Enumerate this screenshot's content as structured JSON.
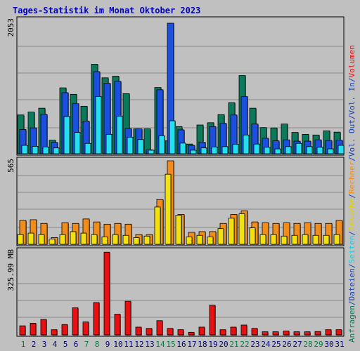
{
  "chart_data": {
    "type": "bar",
    "title": "Tages-Statistik im Monat Oktober 2023",
    "categories": [
      "1",
      "2",
      "3",
      "4",
      "5",
      "6",
      "7",
      "8",
      "9",
      "10",
      "11",
      "12",
      "13",
      "14",
      "15",
      "16",
      "17",
      "18",
      "19",
      "20",
      "21",
      "22",
      "23",
      "24",
      "25",
      "26",
      "27",
      "28",
      "29",
      "30",
      "31"
    ],
    "weekend_days": [
      "1",
      "7",
      "8",
      "14",
      "15",
      "21",
      "22",
      "28",
      "29"
    ],
    "panels": [
      {
        "id": "requests",
        "max_label": "2053",
        "ylim": [
          0,
          2053
        ],
        "series": [
          {
            "name": "Anfragen",
            "color": "#0b7a5a",
            "values": [
              600,
              645,
              705,
              210,
              1020,
              920,
              735,
              1385,
              1175,
              1200,
              930,
              385,
              385,
              1025,
              200,
              420,
              150,
              445,
              480,
              605,
              790,
              1210,
              705,
              405,
              400,
              460,
              330,
              300,
              290,
              355,
              335
            ]
          },
          {
            "name": "Dateien",
            "color": "#1a4fe0",
            "values": [
              375,
              400,
              610,
              175,
              945,
              775,
              505,
              1270,
              1090,
              1120,
              390,
              385,
              60,
              990,
              2020,
              370,
              130,
              180,
              420,
              470,
              600,
              885,
              460,
              240,
              200,
              215,
              195,
              195,
              215,
              205,
              210
            ]
          },
          {
            "name": "Seiten",
            "color": "#22e0f0",
            "values": [
              130,
              115,
              105,
              90,
              575,
              330,
              160,
              885,
              300,
              580,
              255,
              220,
              55,
              280,
              510,
              165,
              55,
              90,
              105,
              110,
              145,
              290,
              150,
              100,
              75,
              110,
              160,
              110,
              100,
              75,
              130
            ]
          }
        ]
      },
      {
        "id": "visits",
        "max_label": "565",
        "ylim": [
          0,
          565
        ],
        "series": [
          {
            "name": "Rechner",
            "color": "#f28c1a",
            "values": [
              160,
              165,
              140,
              45,
              145,
              140,
              170,
              150,
              135,
              140,
              135,
              65,
              65,
              300,
              560,
              200,
              80,
              85,
              85,
              140,
              200,
              225,
              150,
              145,
              140,
              145,
              140,
              145,
              140,
              140,
              160
            ]
          },
          {
            "name": "Besuche",
            "color": "#f2e010",
            "values": [
              65,
              75,
              65,
              35,
              65,
              85,
              75,
              65,
              50,
              65,
              60,
              45,
              55,
              250,
              470,
              195,
              50,
              60,
              50,
              105,
              175,
              205,
              110,
              65,
              65,
              55,
              60,
              65,
              60,
              60,
              65
            ]
          }
        ]
      },
      {
        "id": "volume",
        "max_label": "325.99 MB",
        "ylim": [
          0,
          325.99
        ],
        "series": [
          {
            "name": "Volumen",
            "color": "#e81010",
            "values": [
              35,
              45,
              60,
              20,
              40,
              105,
              50,
              125,
              320,
              80,
              130,
              30,
              25,
              55,
              25,
              20,
              10,
              30,
              115,
              20,
              30,
              38,
              25,
              12,
              12,
              15,
              12,
              12,
              13,
              20,
              20
            ]
          }
        ]
      }
    ],
    "legend_right": [
      {
        "text": "Anfragen",
        "color": "#0b7a5a"
      },
      {
        "text": "/",
        "color": "#1a3fb0"
      },
      {
        "text": "Dateien",
        "color": "#1a3fb0"
      },
      {
        "text": "/",
        "color": "#1a3fb0"
      },
      {
        "text": "Seiten",
        "color": "#22c8e0"
      },
      {
        "text": "/",
        "color": "#1a3fb0"
      },
      {
        "text": "Besuche",
        "color": "#e0d000"
      },
      {
        "text": "/",
        "color": "#1a3fb0"
      },
      {
        "text": "Rechner",
        "color": "#f28c1a"
      },
      {
        "text": "/",
        "color": "#1a3fb0"
      },
      {
        "text": "Vol. Out",
        "color": "#1a3fb0"
      },
      {
        "text": "/",
        "color": "#1a3fb0"
      },
      {
        "text": "Vol. In",
        "color": "#1a3fb0"
      },
      {
        "text": "/",
        "color": "#1a3fb0"
      },
      {
        "text": "Volumen",
        "color": "#e81010"
      }
    ],
    "colors": {
      "background": "#c0c0c0",
      "title": "#0000c0",
      "weekday_label": "#000080",
      "weekend_label": "#008040",
      "grid": "#888888"
    },
    "grid": true
  }
}
